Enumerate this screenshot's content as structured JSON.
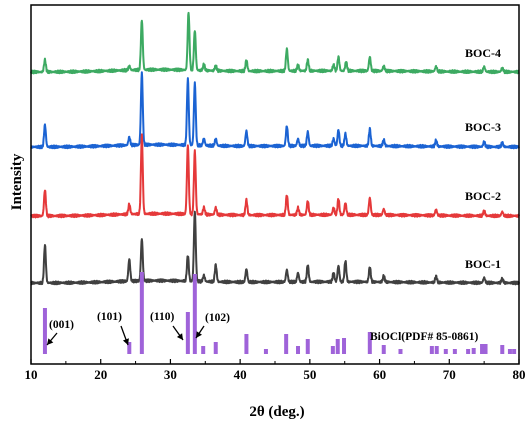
{
  "chart_data": {
    "type": "line",
    "xlabel": "2θ (deg.)",
    "ylabel": "Intensity",
    "xlim": [
      10,
      80
    ],
    "x_ticks": [
      10,
      20,
      30,
      40,
      50,
      60,
      70,
      80
    ],
    "y_ticks_labeled": false,
    "grid": false,
    "series": [
      {
        "name": "BOC-4",
        "color": "#3daa62",
        "peaks": [
          [
            12.0,
            12
          ],
          [
            24.1,
            4
          ],
          [
            25.9,
            50
          ],
          [
            32.6,
            58
          ],
          [
            33.5,
            40
          ],
          [
            34.8,
            6
          ],
          [
            36.5,
            5
          ],
          [
            40.9,
            11
          ],
          [
            46.7,
            22
          ],
          [
            48.3,
            6
          ],
          [
            49.7,
            11
          ],
          [
            53.4,
            6
          ],
          [
            54.1,
            14
          ],
          [
            55.2,
            9
          ],
          [
            58.6,
            14
          ],
          [
            60.6,
            5
          ],
          [
            68.1,
            5
          ],
          [
            75.0,
            5
          ],
          [
            77.6,
            4
          ]
        ]
      },
      {
        "name": "BOC-3",
        "color": "#1b63d3",
        "peaks": [
          [
            12.0,
            22
          ],
          [
            24.1,
            8
          ],
          [
            25.9,
            72
          ],
          [
            32.5,
            66
          ],
          [
            33.5,
            62
          ],
          [
            34.8,
            7
          ],
          [
            36.5,
            7
          ],
          [
            40.9,
            15
          ],
          [
            46.7,
            20
          ],
          [
            48.3,
            7
          ],
          [
            49.7,
            14
          ],
          [
            53.4,
            7
          ],
          [
            54.1,
            16
          ],
          [
            55.1,
            12
          ],
          [
            58.6,
            17
          ],
          [
            60.6,
            6
          ],
          [
            68.1,
            6
          ],
          [
            75.0,
            5
          ],
          [
            77.6,
            4
          ]
        ]
      },
      {
        "name": "BOC-2",
        "color": "#e5393a",
        "peaks": [
          [
            12.0,
            26
          ],
          [
            24.1,
            10
          ],
          [
            25.9,
            78
          ],
          [
            32.5,
            69
          ],
          [
            33.5,
            63
          ],
          [
            34.8,
            7
          ],
          [
            36.5,
            7
          ],
          [
            40.9,
            15
          ],
          [
            46.7,
            20
          ],
          [
            48.3,
            7
          ],
          [
            49.7,
            14
          ],
          [
            53.4,
            7
          ],
          [
            54.1,
            16
          ],
          [
            55.1,
            12
          ],
          [
            58.6,
            17
          ],
          [
            60.6,
            6
          ],
          [
            68.1,
            6
          ],
          [
            75.0,
            5
          ],
          [
            77.6,
            4
          ]
        ]
      },
      {
        "name": "BOC-1",
        "color": "#404040",
        "peaks": [
          [
            12.0,
            38
          ],
          [
            24.1,
            22
          ],
          [
            25.9,
            42
          ],
          [
            32.5,
            26
          ],
          [
            33.5,
            70
          ],
          [
            34.8,
            6
          ],
          [
            36.5,
            17
          ],
          [
            40.9,
            13
          ],
          [
            46.7,
            12
          ],
          [
            48.3,
            9
          ],
          [
            49.7,
            17
          ],
          [
            53.4,
            9
          ],
          [
            54.1,
            16
          ],
          [
            55.1,
            21
          ],
          [
            58.6,
            15
          ],
          [
            60.6,
            6
          ],
          [
            68.1,
            6
          ],
          [
            75.0,
            5
          ],
          [
            77.6,
            4
          ]
        ]
      }
    ],
    "reference": {
      "name": "BiOCl(PDF# 85-0861)",
      "color": "#9f63d9",
      "lines": [
        [
          12.0,
          46
        ],
        [
          24.1,
          12
        ],
        [
          25.9,
          82
        ],
        [
          32.5,
          42
        ],
        [
          33.5,
          80
        ],
        [
          34.7,
          8
        ],
        [
          36.5,
          12
        ],
        [
          40.9,
          20
        ],
        [
          43.7,
          5
        ],
        [
          46.6,
          20
        ],
        [
          48.3,
          8
        ],
        [
          49.7,
          15
        ],
        [
          53.3,
          8
        ],
        [
          54.0,
          15
        ],
        [
          54.9,
          16
        ],
        [
          58.6,
          22
        ],
        [
          60.6,
          9
        ],
        [
          63.0,
          5
        ],
        [
          67.5,
          8
        ],
        [
          68.2,
          8
        ],
        [
          69.5,
          5
        ],
        [
          70.8,
          5
        ],
        [
          72.7,
          5
        ],
        [
          73.5,
          6
        ],
        [
          74.7,
          10
        ],
        [
          75.2,
          10
        ],
        [
          77.6,
          9
        ],
        [
          78.7,
          5
        ],
        [
          79.3,
          5
        ]
      ]
    },
    "annotations": [
      "(001)",
      "(101)",
      "(110)",
      "(102)"
    ]
  }
}
